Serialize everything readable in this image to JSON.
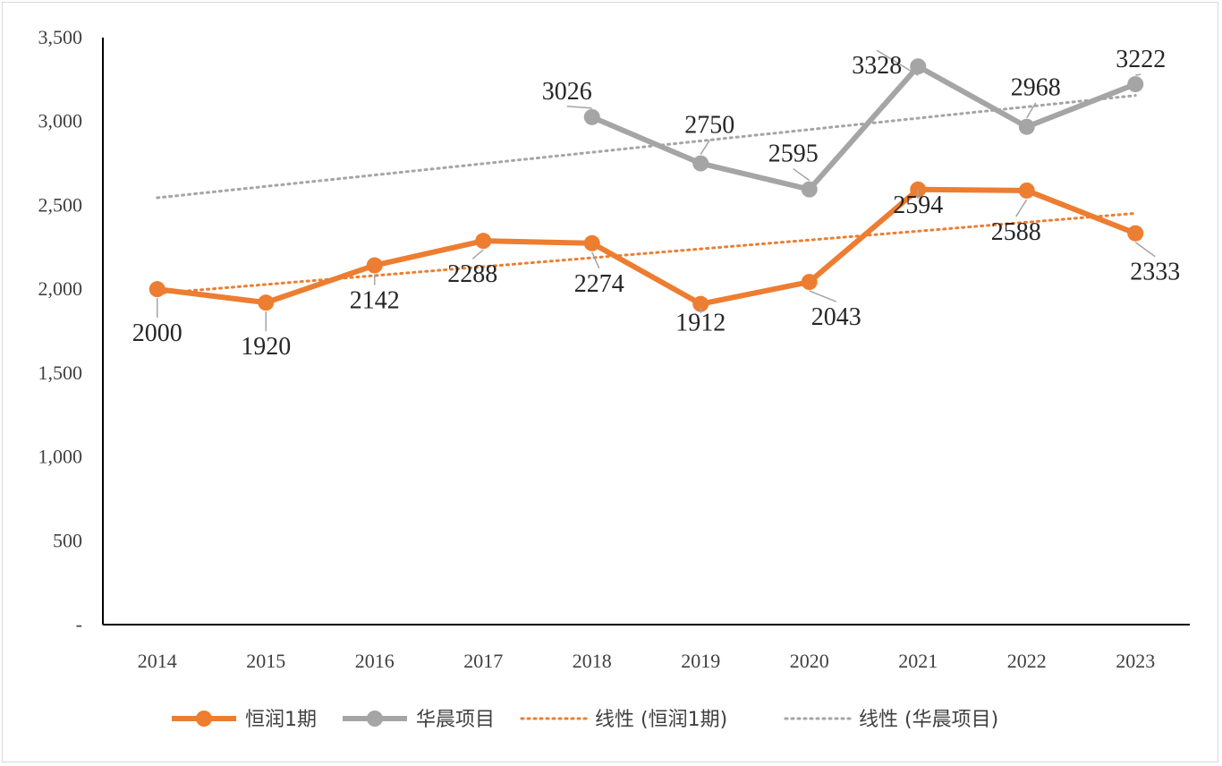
{
  "chart_data": {
    "type": "line",
    "categories": [
      "2014",
      "2015",
      "2016",
      "2017",
      "2018",
      "2019",
      "2020",
      "2021",
      "2022",
      "2023"
    ],
    "ylim": [
      0,
      3500
    ],
    "y_ticks": [
      0,
      500,
      1000,
      1500,
      2000,
      2500,
      3000,
      3500
    ],
    "y_tick_labels": [
      "-",
      "500",
      "1,000",
      "1,500",
      "2,000",
      "2,500",
      "3,000",
      "3,500"
    ],
    "grid": false,
    "legend_position": "bottom",
    "series": [
      {
        "name": "恒润1期",
        "color": "#ed7d31",
        "values": [
          2000,
          1920,
          2142,
          2288,
          2274,
          1912,
          2043,
          2594,
          2588,
          2333
        ],
        "labels": [
          "2000",
          "1920",
          "2142",
          "2288",
          "2274",
          "1912",
          "2043",
          "2594",
          "2588",
          "2333"
        ]
      },
      {
        "name": "华晨项目",
        "color": "#a5a5a5",
        "values": [
          null,
          null,
          null,
          null,
          3026,
          2750,
          2595,
          3328,
          2968,
          3222
        ],
        "labels": [
          "",
          "",
          "",
          "",
          "3026",
          "2750",
          "2595",
          "3328",
          "2968",
          "3222"
        ]
      }
    ],
    "trendlines": [
      {
        "name": "线性 (恒润1期)",
        "color": "#ed7d31",
        "start": 1975,
        "end": 2452
      },
      {
        "name": "线性 (华晨项目)",
        "color": "#a5a5a5",
        "start": 2545,
        "end": 3155
      }
    ]
  }
}
